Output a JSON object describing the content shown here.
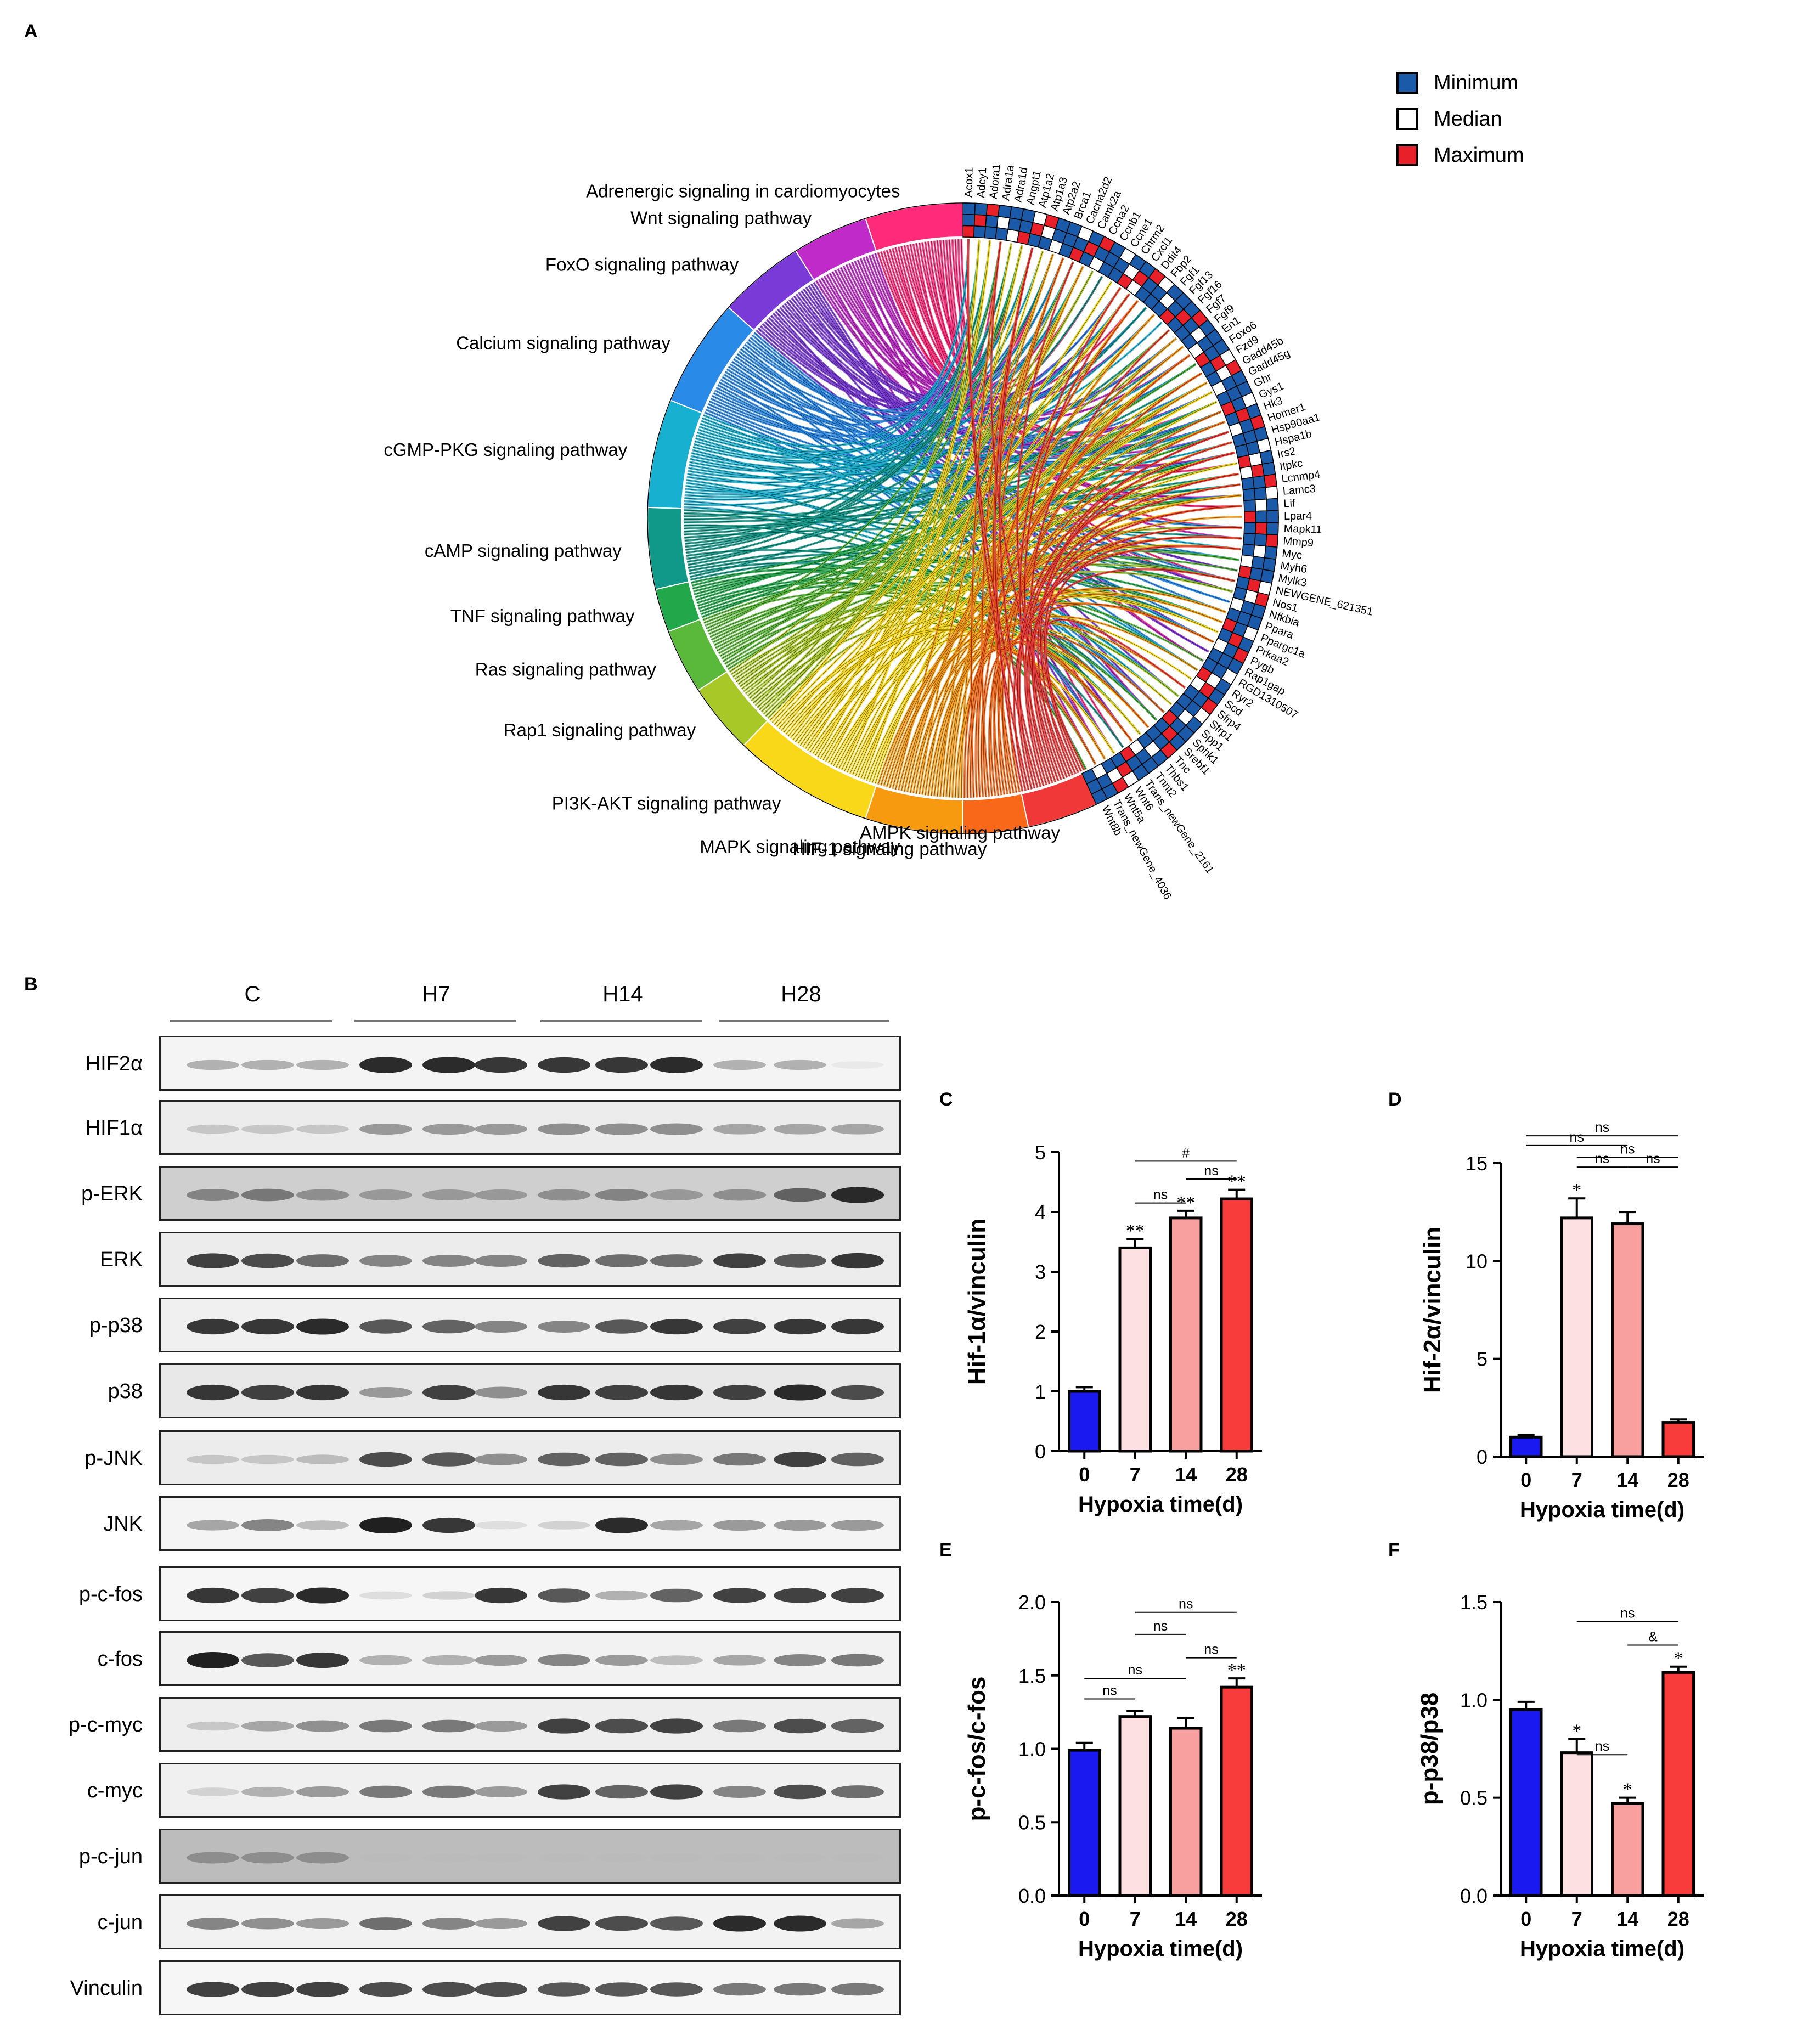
{
  "panel_labels": {
    "a": "A",
    "b": "B",
    "c": "C",
    "d": "D",
    "e": "E",
    "f": "F"
  },
  "legend": [
    {
      "label": "Minimum",
      "color": "#1a5aa8"
    },
    {
      "label": "Median",
      "color": "#ffffff"
    },
    {
      "label": "Maximum",
      "color": "#e8202a"
    }
  ],
  "pathways": [
    {
      "name": "Adrenergic signaling in cardiomyocytes",
      "color": "#ff2a7a"
    },
    {
      "name": "Wnt signaling pathway",
      "color": "#c02ac8"
    },
    {
      "name": "FoxO signaling pathway",
      "color": "#7a3ad8"
    },
    {
      "name": "Calcium signaling pathway",
      "color": "#2a8ae8"
    },
    {
      "name": "cGMP-PKG signaling pathway",
      "color": "#18b0d0"
    },
    {
      "name": "cAMP signaling pathway",
      "color": "#109888"
    },
    {
      "name": "TNF signaling pathway",
      "color": "#22a84a"
    },
    {
      "name": "Ras signaling pathway",
      "color": "#5ab83a"
    },
    {
      "name": "Rap1 signaling pathway",
      "color": "#a8c828"
    },
    {
      "name": "PI3K-AKT signaling pathway",
      "color": "#f8d818"
    },
    {
      "name": "MAPK signaling pathway",
      "color": "#f89a10"
    },
    {
      "name": "HIF-1 signaling pathway",
      "color": "#f86818"
    },
    {
      "name": "AMPK signaling pathway",
      "color": "#f03838"
    }
  ],
  "genes": [
    "Acox1",
    "Adcy1",
    "Adora1",
    "Adra1a",
    "Adra1d",
    "Angpt1",
    "Atp1a2",
    "Atp1a3",
    "Atp2a2",
    "Brca1",
    "Cacna2d2",
    "Camk2a",
    "Ccna2",
    "Ccnb1",
    "Ccne1",
    "Chrm2",
    "Cxcl1",
    "Ddit4",
    "Fbp2",
    "Fgf1",
    "Fgf13",
    "Fgf16",
    "Fgf7",
    "Fgf9",
    "En1",
    "Foxo6",
    "Fzd9",
    "Gadd45b",
    "Gadd45g",
    "Ghr",
    "Gys1",
    "Hk3",
    "Homer1",
    "Hsp90aa1",
    "Hspa1b",
    "Irs2",
    "Itpkc",
    "Lcnmp4",
    "Lamc3",
    "Lif",
    "Lpar4",
    "Mapk11",
    "Mmp9",
    "Myc",
    "Myh6",
    "Mylk3",
    "NEWGENE_621351",
    "Nos1",
    "Nfkbia",
    "Ppara",
    "Ppargc1a",
    "Prkaa2",
    "Pygb",
    "Rap1gap",
    "RGD1310507",
    "Ryr2",
    "Scd",
    "Sfrp4",
    "Sfrp1",
    "Spp1",
    "Sphk1",
    "Srebf1",
    "Tnc",
    "Thbs1",
    "Tnnt2",
    "Trans_newGene_2161",
    "Wnt6",
    "Wnt5a",
    "Trans_newGene_4036",
    "Wnt8b"
  ],
  "blot": {
    "groups": [
      "C",
      "H7",
      "H14",
      "H28"
    ],
    "proteins": [
      "HIF2α",
      "HIF1α",
      "p-ERK",
      "ERK",
      "p-p38",
      "p38",
      "p-JNK",
      "JNK",
      "p-c-fos",
      "c-fos",
      "p-c-myc",
      "c-myc",
      "p-c-jun",
      "c-jun",
      "Vinculin"
    ]
  },
  "chart_data": [
    {
      "panel": "C",
      "type": "bar",
      "categories": [
        "0",
        "7",
        "14",
        "28"
      ],
      "values": [
        1.0,
        3.4,
        3.9,
        4.22
      ],
      "errors": [
        0.07,
        0.15,
        0.12,
        0.15
      ],
      "colors": [
        "#1a1af0",
        "#fde0e2",
        "#f8a0a0",
        "#f83c3c"
      ],
      "xlabel": "Hypoxia time(d)",
      "ylabel": "Hif-1α/vinculin",
      "ylim": [
        0,
        5
      ],
      "yticks": [
        "0",
        "1",
        "2",
        "3",
        "4",
        "5"
      ],
      "stars": [
        "",
        "**",
        "**",
        "**"
      ],
      "brackets": [
        {
          "from": 1,
          "to": 3,
          "label": "#"
        },
        {
          "from": 2,
          "to": 3,
          "label": "ns"
        },
        {
          "from": 1,
          "to": 2,
          "label": "ns"
        }
      ]
    },
    {
      "panel": "D",
      "type": "bar",
      "categories": [
        "0",
        "7",
        "14",
        "28"
      ],
      "values": [
        1.0,
        12.2,
        11.9,
        1.75
      ],
      "errors": [
        0.1,
        1.0,
        0.6,
        0.15
      ],
      "colors": [
        "#1a1af0",
        "#fde0e2",
        "#f8a0a0",
        "#f83c3c"
      ],
      "xlabel": "Hypoxia time(d)",
      "ylabel": "Hif-2α/vinculin",
      "ylim": [
        0,
        15
      ],
      "yticks": [
        "0",
        "5",
        "10",
        "15"
      ],
      "stars": [
        "",
        "*",
        "",
        ""
      ],
      "brackets": [
        {
          "from": 0,
          "to": 3,
          "label": "ns"
        },
        {
          "from": 0,
          "to": 2,
          "label": "ns"
        },
        {
          "from": 1,
          "to": 3,
          "label": "ns"
        },
        {
          "from": 1,
          "to": 2,
          "label": "ns"
        },
        {
          "from": 2,
          "to": 3,
          "label": "ns"
        }
      ]
    },
    {
      "panel": "E",
      "type": "bar",
      "categories": [
        "0",
        "7",
        "14",
        "28"
      ],
      "values": [
        0.99,
        1.22,
        1.14,
        1.42
      ],
      "errors": [
        0.05,
        0.04,
        0.07,
        0.06
      ],
      "colors": [
        "#1a1af0",
        "#fde0e2",
        "#f8a0a0",
        "#f83c3c"
      ],
      "xlabel": "Hypoxia time(d)",
      "ylabel": "p-c-fos/c-fos",
      "ylim": [
        0,
        2.0
      ],
      "yticks": [
        "0.0",
        "0.5",
        "1.0",
        "1.5",
        "2.0"
      ],
      "stars": [
        "",
        "",
        "",
        "**"
      ],
      "brackets": [
        {
          "from": 1,
          "to": 3,
          "label": "ns"
        },
        {
          "from": 2,
          "to": 3,
          "label": "ns"
        },
        {
          "from": 1,
          "to": 2,
          "label": "ns"
        },
        {
          "from": 0,
          "to": 2,
          "label": "ns"
        },
        {
          "from": 0,
          "to": 1,
          "label": "ns"
        }
      ]
    },
    {
      "panel": "F",
      "type": "bar",
      "categories": [
        "0",
        "7",
        "14",
        "28"
      ],
      "values": [
        0.95,
        0.73,
        0.47,
        1.14
      ],
      "errors": [
        0.04,
        0.07,
        0.03,
        0.03
      ],
      "colors": [
        "#1a1af0",
        "#fde0e2",
        "#f8a0a0",
        "#f83c3c"
      ],
      "xlabel": "Hypoxia time(d)",
      "ylabel": "p-p38/p38",
      "ylim": [
        0,
        1.5
      ],
      "yticks": [
        "0.0",
        "0.5",
        "1.0",
        "1.5"
      ],
      "stars": [
        "",
        "*",
        "*",
        "*"
      ],
      "brackets": [
        {
          "from": 1,
          "to": 3,
          "label": "ns"
        },
        {
          "from": 2,
          "to": 3,
          "label": "&"
        },
        {
          "from": 1,
          "to": 2,
          "label": "ns"
        }
      ]
    }
  ]
}
